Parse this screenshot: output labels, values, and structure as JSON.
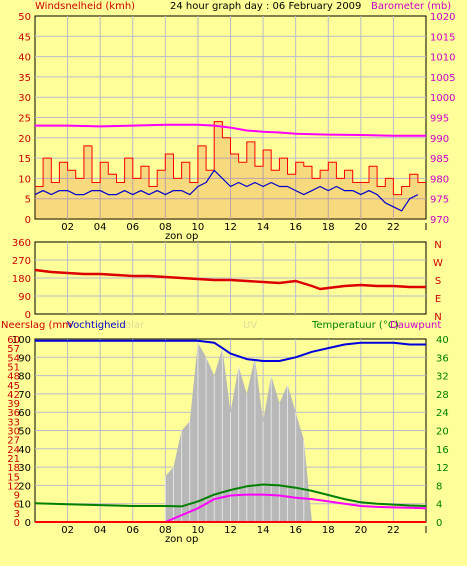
{
  "header": {
    "wind_label": "Windsnelheid (kmh)",
    "title": "24 hour graph day : 06 February 2009",
    "baro_label": "Barometer (mb)"
  },
  "sections": {
    "rain_label": "Neerslag (mm",
    "humidity_label": "Vochtigheid",
    "solar_label": "olar",
    "uv_label": "UV",
    "temp_label": "Temperatuur (°C)",
    "dew_label": "Dauwpunt"
  },
  "colors": {
    "background": "#ffff99",
    "wind": "#0000cc",
    "gust": "#ff0000",
    "gust_fill": "#cc3300",
    "barometer": "#ff00ff",
    "direction": "#dd0000",
    "humidity": "#0000dd",
    "solar": "#b8b8b8",
    "temperature": "#008000",
    "dewpoint": "#ff00ff",
    "rain": "#ff0000"
  },
  "chart_data": [
    {
      "type": "line",
      "name": "wind-barometer",
      "x_ticks": [
        "02",
        "04",
        "06",
        "08",
        "10",
        "12",
        "14",
        "16",
        "18",
        "20",
        "22",
        "I"
      ],
      "x_annotation": "zon op",
      "y_left_ticks": [
        "0",
        "5",
        "10",
        "15",
        "20",
        "25",
        "30",
        "35",
        "40",
        "45",
        "50"
      ],
      "y_left_range": [
        0,
        50
      ],
      "y_right_ticks": [
        "970",
        "975",
        "980",
        "985",
        "990",
        "995",
        "1000",
        "1005",
        "1010",
        "1015",
        "1020"
      ],
      "y_right_range": [
        970,
        1020
      ],
      "hour_range": [
        0,
        24
      ],
      "series": [
        {
          "key": "wind",
          "x": [
            0,
            0.5,
            1,
            1.5,
            2,
            2.5,
            3,
            3.5,
            4,
            4.5,
            5,
            5.5,
            6,
            6.5,
            7,
            7.5,
            8,
            8.5,
            9,
            9.5,
            10,
            10.5,
            11,
            11.5,
            12,
            12.5,
            13,
            13.5,
            14,
            14.5,
            15,
            15.5,
            16,
            16.5,
            17,
            17.5,
            18,
            18.5,
            19,
            19.5,
            20,
            20.5,
            21,
            21.5,
            22,
            22.5,
            23,
            23.5
          ],
          "values": [
            6,
            7,
            6,
            7,
            7,
            6,
            6,
            7,
            7,
            6,
            6,
            7,
            6,
            7,
            6,
            7,
            6,
            7,
            7,
            6,
            8,
            9,
            12,
            10,
            8,
            9,
            8,
            9,
            8,
            9,
            8,
            8,
            7,
            6,
            7,
            8,
            7,
            8,
            7,
            7,
            6,
            7,
            6,
            4,
            3,
            2,
            5,
            6
          ]
        },
        {
          "key": "gust",
          "x": [
            0,
            0.5,
            1,
            1.5,
            2,
            2.5,
            3,
            3.5,
            4,
            4.5,
            5,
            5.5,
            6,
            6.5,
            7,
            7.5,
            8,
            8.5,
            9,
            9.5,
            10,
            10.5,
            11,
            11.5,
            12,
            12.5,
            13,
            13.5,
            14,
            14.5,
            15,
            15.5,
            16,
            16.5,
            17,
            17.5,
            18,
            18.5,
            19,
            19.5,
            20,
            20.5,
            21,
            21.5,
            22,
            22.5,
            23,
            23.5
          ],
          "values": [
            8,
            15,
            9,
            14,
            12,
            10,
            18,
            9,
            14,
            11,
            9,
            15,
            10,
            13,
            8,
            12,
            16,
            10,
            14,
            9,
            18,
            12,
            24,
            20,
            16,
            14,
            19,
            13,
            17,
            12,
            15,
            11,
            14,
            13,
            10,
            12,
            14,
            10,
            12,
            9,
            9,
            13,
            8,
            10,
            6,
            8,
            11,
            9
          ]
        },
        {
          "key": "barometer",
          "x": [
            0,
            2,
            4,
            6,
            8,
            10,
            11,
            12,
            13,
            14,
            15,
            16,
            18,
            20,
            22,
            24
          ],
          "values": [
            993,
            993,
            992.8,
            993,
            993.2,
            993.2,
            993,
            992.5,
            991.8,
            991.5,
            991.3,
            991,
            990.8,
            990.7,
            990.5,
            990.5
          ]
        }
      ]
    },
    {
      "type": "line",
      "name": "wind-direction",
      "y_ticks": [
        "0",
        "90",
        "180",
        "270",
        "360"
      ],
      "y_range": [
        0,
        360
      ],
      "y_right_labels": [
        "N",
        "W",
        "S",
        "E",
        "N"
      ],
      "series": [
        {
          "key": "direction",
          "x": [
            0,
            1,
            2,
            3,
            4,
            5,
            6,
            7,
            8,
            9,
            10,
            11,
            12,
            13,
            14,
            15,
            16,
            17,
            17.5,
            18,
            19,
            20,
            21,
            22,
            23,
            24
          ],
          "values": [
            220,
            210,
            205,
            200,
            200,
            195,
            190,
            190,
            185,
            180,
            175,
            170,
            170,
            165,
            160,
            155,
            165,
            140,
            125,
            130,
            140,
            145,
            140,
            140,
            135,
            135
          ]
        }
      ]
    },
    {
      "type": "line",
      "name": "rain-humidity-temperature",
      "y_left_ticks": [
        "0",
        "10",
        "20",
        "30",
        "40",
        "50",
        "60",
        "70",
        "80",
        "90",
        "100"
      ],
      "y_rain_ticks": [
        "0",
        "3",
        "6",
        "9",
        "12",
        "15",
        "18",
        "21",
        "24",
        "27",
        "30",
        "33",
        "36",
        "39",
        "42",
        "45",
        "48",
        "51",
        "54",
        "57",
        "60"
      ],
      "y_left_range": [
        0,
        100
      ],
      "y_right_ticks": [
        "0",
        "4",
        "8",
        "12",
        "16",
        "20",
        "24",
        "28",
        "32",
        "36",
        "40"
      ],
      "y_right_range": [
        0,
        40
      ],
      "series": [
        {
          "key": "humidity",
          "x": [
            0,
            4,
            8,
            10,
            11,
            11.5,
            12,
            13,
            14,
            15,
            16,
            17,
            18,
            19,
            20,
            21,
            22,
            23,
            24
          ],
          "values": [
            99,
            99,
            99,
            99,
            98,
            95,
            92,
            89,
            88,
            88,
            90,
            93,
            95,
            97,
            98,
            98,
            98,
            97,
            97
          ]
        },
        {
          "key": "temperature",
          "x": [
            0,
            2,
            4,
            6,
            8,
            9,
            10,
            11,
            12,
            13,
            14,
            15,
            16,
            17,
            18,
            19,
            20,
            21,
            22,
            23,
            24
          ],
          "values": [
            4.1,
            3.9,
            3.7,
            3.5,
            3.5,
            3.4,
            4.5,
            6,
            7,
            7.8,
            8.2,
            8,
            7.5,
            6.8,
            5.9,
            5,
            4.3,
            4,
            3.8,
            3.6,
            3.5
          ]
        },
        {
          "key": "dewpoint",
          "x": [
            0,
            8,
            10,
            11,
            12,
            13,
            14,
            15,
            16,
            17,
            18,
            19,
            20,
            21,
            22,
            23,
            24
          ],
          "values": [
            0,
            0,
            3,
            5,
            5.8,
            6,
            6,
            5.8,
            5.3,
            5,
            4.5,
            4,
            3.5,
            3.3,
            3.2,
            3.1,
            3
          ]
        },
        {
          "key": "solar",
          "x": [
            8,
            8.5,
            9,
            9.5,
            10,
            10.5,
            11,
            11.5,
            12,
            12.5,
            13,
            13.5,
            14,
            14.5,
            15,
            15.5,
            16,
            16.5,
            17
          ],
          "values": [
            25,
            30,
            50,
            55,
            98,
            90,
            80,
            95,
            60,
            85,
            70,
            90,
            55,
            80,
            65,
            75,
            60,
            45,
            0
          ]
        },
        {
          "key": "rain",
          "x": [
            0,
            24
          ],
          "values": [
            0,
            0
          ]
        }
      ]
    }
  ]
}
